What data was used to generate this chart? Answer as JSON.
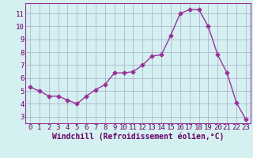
{
  "x": [
    0,
    1,
    2,
    3,
    4,
    5,
    6,
    7,
    8,
    9,
    10,
    11,
    12,
    13,
    14,
    15,
    16,
    17,
    18,
    19,
    20,
    21,
    22,
    23
  ],
  "y": [
    5.3,
    5.0,
    4.6,
    4.6,
    4.3,
    4.0,
    4.6,
    5.1,
    5.5,
    6.4,
    6.4,
    6.5,
    7.0,
    7.7,
    7.8,
    9.3,
    11.0,
    11.3,
    11.3,
    10.0,
    7.8,
    6.4,
    4.1,
    2.8
  ],
  "line_color": "#993399",
  "marker": "D",
  "marker_size": 2.5,
  "bg_color": "#d4f0f0",
  "grid_color": "#aaaacc",
  "xlabel": "Windchill (Refroidissement éolien,°C)",
  "ylim": [
    2.5,
    11.8
  ],
  "yticks": [
    3,
    4,
    5,
    6,
    7,
    8,
    9,
    10,
    11
  ],
  "xlim": [
    -0.5,
    23.5
  ],
  "xticks": [
    0,
    1,
    2,
    3,
    4,
    5,
    6,
    7,
    8,
    9,
    10,
    11,
    12,
    13,
    14,
    15,
    16,
    17,
    18,
    19,
    20,
    21,
    22,
    23
  ],
  "tick_fontsize": 6.5,
  "xlabel_fontsize": 7
}
